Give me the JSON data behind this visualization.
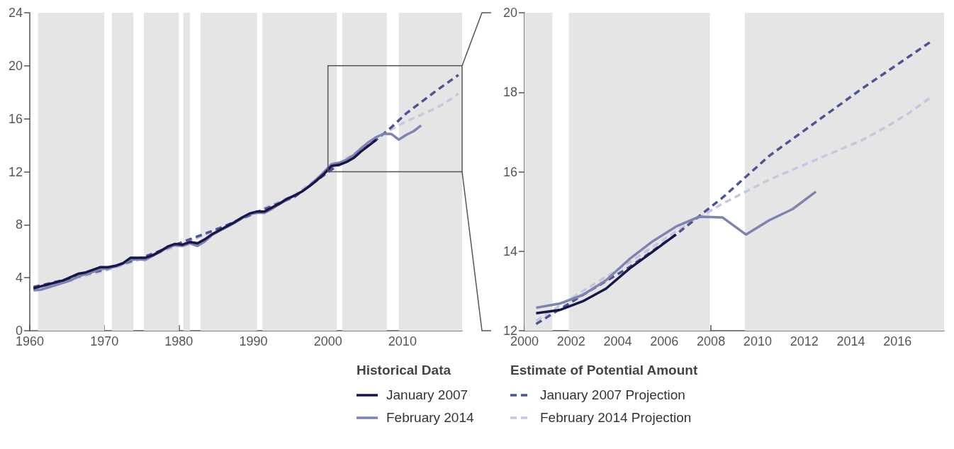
{
  "chart_data": [
    {
      "type": "line",
      "marker": "none",
      "grid": false,
      "legend": false,
      "xlim": [
        1960,
        2018
      ],
      "xticks": [
        1960,
        1970,
        1980,
        1990,
        2000,
        2010
      ],
      "ylim": [
        0,
        24
      ],
      "yticks": [
        0,
        4,
        8,
        12,
        16,
        20,
        24
      ],
      "bands": [
        {
          "axis": "x",
          "from": 1961.1,
          "to": 1970,
          "color": "#e5e5e5"
        },
        {
          "axis": "x",
          "from": 1971,
          "to": 1973.9,
          "color": "#e5e5e5"
        },
        {
          "axis": "x",
          "from": 1975.3,
          "to": 1980,
          "color": "#e5e5e5"
        },
        {
          "axis": "x",
          "from": 1980.6,
          "to": 1981.5,
          "color": "#e5e5e5"
        },
        {
          "axis": "x",
          "from": 1982.9,
          "to": 1990.5,
          "color": "#e5e5e5"
        },
        {
          "axis": "x",
          "from": 1991.2,
          "to": 2001.2,
          "color": "#e5e5e5"
        },
        {
          "axis": "x",
          "from": 2001.9,
          "to": 2007.9,
          "color": "#e5e5e5"
        },
        {
          "axis": "x",
          "from": 2009.5,
          "to": 2018,
          "color": "#e5e5e5"
        }
      ],
      "series": [
        {
          "color": "#c5c7df",
          "line_style": "dashed",
          "x": [
            1960.5,
            1965.5,
            1970.5,
            1975.5,
            1980.5,
            1985.5,
            1990.5,
            1995.5,
            2000.5,
            2002.5,
            2004.5,
            2006.5,
            2008.5,
            2009.5,
            2010.5,
            2011.5,
            2012.5,
            2013.5,
            2014.5,
            2015.5,
            2016.5,
            2017.5
          ],
          "values": [
            3.15,
            3.85,
            4.6,
            5.5,
            6.55,
            7.7,
            9.0,
            10.25,
            12.25,
            13.0,
            13.72,
            14.5,
            15.2,
            15.5,
            15.8,
            16.05,
            16.3,
            16.55,
            16.8,
            17.12,
            17.48,
            17.9
          ]
        },
        {
          "color": "#4b5593",
          "line_style": "dashed",
          "x": [
            1960.5,
            1965.5,
            1970.5,
            1975.5,
            1980.5,
            1985.5,
            1990.5,
            1995.5,
            2000.5,
            2002.5,
            2004.5,
            2006.5,
            2008.5,
            2010.5,
            2012.5,
            2014.5,
            2016.5,
            2017.5
          ],
          "values": [
            3.3,
            3.95,
            4.7,
            5.6,
            6.7,
            7.75,
            8.95,
            10.1,
            12.17,
            12.9,
            13.6,
            14.42,
            15.35,
            16.4,
            17.25,
            18.1,
            18.9,
            19.3
          ]
        },
        {
          "color": "#7d84b2",
          "line_style": "solid",
          "x": [
            1960.5,
            1961.5,
            1963.5,
            1965.5,
            1966.5,
            1968.5,
            1969.5,
            1970.5,
            1971.5,
            1972.5,
            1973.5,
            1974.5,
            1975.5,
            1976.5,
            1977.5,
            1978.5,
            1979.5,
            1980.5,
            1981.5,
            1982.5,
            1983.5,
            1984.5,
            1985.5,
            1986.5,
            1987.5,
            1988.5,
            1989.5,
            1990.5,
            1991.5,
            1992.5,
            1993.5,
            1994.5,
            1995.5,
            1996.5,
            1997.5,
            1998.5,
            1999.5,
            2000.5,
            2001.5,
            2002.5,
            2003.5,
            2004.5,
            2005.5,
            2006.5,
            2007.5,
            2008.5,
            2009.5,
            2010.5,
            2011.5,
            2012.5
          ],
          "values": [
            3.05,
            3.1,
            3.45,
            3.8,
            4.1,
            4.45,
            4.65,
            4.7,
            4.85,
            5.05,
            5.35,
            5.4,
            5.35,
            5.65,
            5.95,
            6.3,
            6.45,
            6.4,
            6.6,
            6.4,
            6.75,
            7.25,
            7.55,
            7.85,
            8.15,
            8.5,
            8.8,
            8.9,
            8.9,
            9.2,
            9.55,
            9.9,
            10.2,
            10.5,
            10.95,
            11.45,
            12.0,
            12.58,
            12.68,
            12.9,
            13.27,
            13.8,
            14.25,
            14.62,
            14.87,
            14.85,
            14.42,
            14.78,
            15.06,
            15.5
          ]
        },
        {
          "color": "#16164a",
          "line_style": "solid",
          "x": [
            1960.5,
            1962.5,
            1964.5,
            1966.5,
            1967.5,
            1968.5,
            1969.5,
            1970.5,
            1971.5,
            1972.5,
            1973.5,
            1974.5,
            1975.5,
            1976.5,
            1977.5,
            1978.5,
            1979.5,
            1980.5,
            1981.5,
            1982.5,
            1983.5,
            1984.5,
            1985.5,
            1986.5,
            1987.5,
            1988.5,
            1989.5,
            1990.5,
            1991.5,
            1992.5,
            1993.5,
            1994.5,
            1995.5,
            1996.5,
            1997.5,
            1998.5,
            1999.5,
            2000.5,
            2001.5,
            2002.5,
            2003.5,
            2004.5,
            2005.5,
            2006.5
          ],
          "values": [
            3.2,
            3.5,
            3.8,
            4.3,
            4.4,
            4.6,
            4.8,
            4.8,
            4.9,
            5.1,
            5.5,
            5.5,
            5.5,
            5.7,
            6.0,
            6.35,
            6.55,
            6.5,
            6.7,
            6.6,
            6.9,
            7.3,
            7.6,
            7.9,
            8.2,
            8.55,
            8.85,
            9.0,
            9.0,
            9.3,
            9.6,
            9.95,
            10.2,
            10.5,
            10.9,
            11.35,
            11.85,
            12.44,
            12.52,
            12.74,
            13.06,
            13.56,
            13.99,
            14.42
          ]
        }
      ]
    },
    {
      "type": "line",
      "marker": "none",
      "grid": false,
      "legend": "bottom",
      "xlim": [
        2000,
        2018
      ],
      "xticks": [
        2000,
        2002,
        2004,
        2006,
        2008,
        2010,
        2012,
        2014,
        2016
      ],
      "ylim": [
        12,
        20
      ],
      "yticks": [
        12,
        14,
        16,
        18,
        20
      ],
      "annotations": [
        "Historical Data",
        "Estimate of Potential Amount"
      ],
      "bands": [
        {
          "axis": "x",
          "from": 2000,
          "to": 2001.2,
          "color": "#e5e5e5"
        },
        {
          "axis": "x",
          "from": 2001.9,
          "to": 2007.95,
          "color": "#e5e5e5"
        },
        {
          "axis": "x",
          "from": 2009.45,
          "to": 2018,
          "color": "#e5e5e5"
        }
      ],
      "series": [
        {
          "name": "February 2014 Projection",
          "color": "#c5c7df",
          "line_style": "dashed",
          "x": [
            2000.5,
            2002.5,
            2004.5,
            2006.5,
            2008.5,
            2009.5,
            2010.5,
            2011.5,
            2012.5,
            2013.5,
            2014.5,
            2015.5,
            2016.5,
            2017.5
          ],
          "values": [
            12.25,
            13.0,
            13.72,
            14.5,
            15.2,
            15.5,
            15.8,
            16.05,
            16.3,
            16.55,
            16.8,
            17.12,
            17.48,
            17.9
          ]
        },
        {
          "name": "January 2007 Projection",
          "color": "#4b5593",
          "line_style": "dashed",
          "x": [
            2000.5,
            2002.5,
            2004.5,
            2006.5,
            2008.5,
            2010.5,
            2012.5,
            2014.5,
            2016.5,
            2017.5
          ],
          "values": [
            12.17,
            12.9,
            13.6,
            14.42,
            15.35,
            16.4,
            17.25,
            18.1,
            18.9,
            19.3
          ]
        },
        {
          "name": "February 2014",
          "color": "#7d84b2",
          "line_style": "solid",
          "x": [
            2000.5,
            2001.5,
            2002.5,
            2003.5,
            2004.5,
            2005.5,
            2006.5,
            2007.5,
            2008.5,
            2009.5,
            2010.5,
            2011.5,
            2012.5
          ],
          "values": [
            12.58,
            12.68,
            12.9,
            13.27,
            13.8,
            14.25,
            14.62,
            14.87,
            14.85,
            14.42,
            14.78,
            15.06,
            15.5
          ]
        },
        {
          "name": "January 2007",
          "color": "#16164a",
          "line_style": "solid",
          "x": [
            2000.5,
            2001.5,
            2002.5,
            2003.5,
            2004.5,
            2005.5,
            2006.5
          ],
          "values": [
            12.44,
            12.52,
            12.74,
            13.06,
            13.56,
            13.99,
            14.42
          ]
        }
      ]
    }
  ]
}
